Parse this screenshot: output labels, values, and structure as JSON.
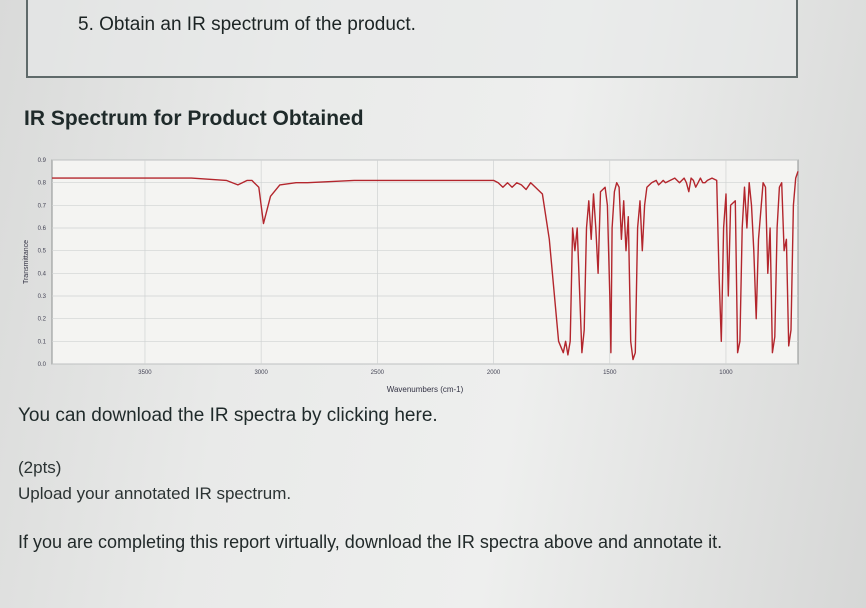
{
  "question": {
    "text": "5. Obtain an IR spectrum of the product."
  },
  "section": {
    "title": "IR Spectrum for Product Obtained"
  },
  "chart_data": {
    "type": "line",
    "xlabel": "Wavenumbers (cm-1)",
    "ylabel": "Transmittance",
    "xlim": [
      3900,
      690
    ],
    "ylim": [
      0.0,
      0.9
    ],
    "x_ticks": [
      "3500",
      "3000",
      "2500",
      "2000",
      "1500",
      "1000"
    ],
    "y_ticks": [
      "0.0",
      "0.1",
      "0.2",
      "0.3",
      "0.4",
      "0.5",
      "0.6",
      "0.7",
      "0.8",
      "0.9"
    ],
    "grid": true,
    "line_color": "#b3262d",
    "series": [
      {
        "x": [
          3900,
          3700,
          3500,
          3300,
          3150,
          3100,
          3060,
          3040,
          3030,
          3010,
          2990,
          2960,
          2920,
          2850,
          2800,
          2600,
          2400,
          2200,
          2100,
          2050,
          2000,
          1980,
          1960,
          1940,
          1920,
          1900,
          1880,
          1860,
          1840,
          1820,
          1790,
          1760,
          1720,
          1700,
          1690,
          1680,
          1670,
          1660,
          1650,
          1640,
          1620,
          1610,
          1600,
          1590,
          1580,
          1570,
          1560,
          1550,
          1540,
          1520,
          1510,
          1500,
          1495,
          1490,
          1480,
          1470,
          1460,
          1450,
          1440,
          1430,
          1420,
          1410,
          1400,
          1390,
          1380,
          1370,
          1360,
          1350,
          1340,
          1320,
          1300,
          1290,
          1280,
          1270,
          1260,
          1240,
          1220,
          1200,
          1180,
          1170,
          1160,
          1150,
          1140,
          1130,
          1120,
          1110,
          1100,
          1090,
          1080,
          1060,
          1040,
          1030,
          1020,
          1010,
          1000,
          990,
          980,
          960,
          950,
          940,
          930,
          920,
          910,
          900,
          890,
          880,
          870,
          860,
          840,
          830,
          820,
          810,
          800,
          790,
          780,
          770,
          760,
          750,
          740,
          730,
          720,
          710,
          700,
          690
        ],
        "y": [
          0.82,
          0.82,
          0.82,
          0.82,
          0.81,
          0.79,
          0.81,
          0.81,
          0.8,
          0.78,
          0.62,
          0.74,
          0.79,
          0.8,
          0.8,
          0.81,
          0.81,
          0.81,
          0.81,
          0.81,
          0.81,
          0.8,
          0.78,
          0.8,
          0.78,
          0.8,
          0.79,
          0.77,
          0.8,
          0.78,
          0.75,
          0.55,
          0.1,
          0.05,
          0.1,
          0.04,
          0.1,
          0.6,
          0.5,
          0.6,
          0.05,
          0.15,
          0.6,
          0.72,
          0.55,
          0.75,
          0.6,
          0.4,
          0.76,
          0.78,
          0.7,
          0.3,
          0.05,
          0.6,
          0.76,
          0.8,
          0.78,
          0.55,
          0.72,
          0.5,
          0.65,
          0.1,
          0.02,
          0.05,
          0.6,
          0.72,
          0.5,
          0.7,
          0.78,
          0.8,
          0.81,
          0.79,
          0.8,
          0.81,
          0.8,
          0.81,
          0.82,
          0.8,
          0.82,
          0.8,
          0.76,
          0.82,
          0.81,
          0.78,
          0.8,
          0.82,
          0.8,
          0.8,
          0.81,
          0.82,
          0.81,
          0.4,
          0.1,
          0.6,
          0.75,
          0.3,
          0.7,
          0.72,
          0.05,
          0.1,
          0.6,
          0.78,
          0.6,
          0.8,
          0.7,
          0.5,
          0.2,
          0.55,
          0.8,
          0.78,
          0.4,
          0.6,
          0.05,
          0.12,
          0.6,
          0.78,
          0.8,
          0.5,
          0.55,
          0.08,
          0.15,
          0.7,
          0.82,
          0.85
        ]
      }
    ]
  },
  "download": {
    "prefix": "You can download the IR spectra by ",
    "link": "clicking here",
    "suffix": "."
  },
  "points": "(2pts)",
  "upload_text": "Upload your annotated IR spectrum.",
  "virtual_text": "If you are completing this report virtually, download the IR spectra above and annotate it."
}
